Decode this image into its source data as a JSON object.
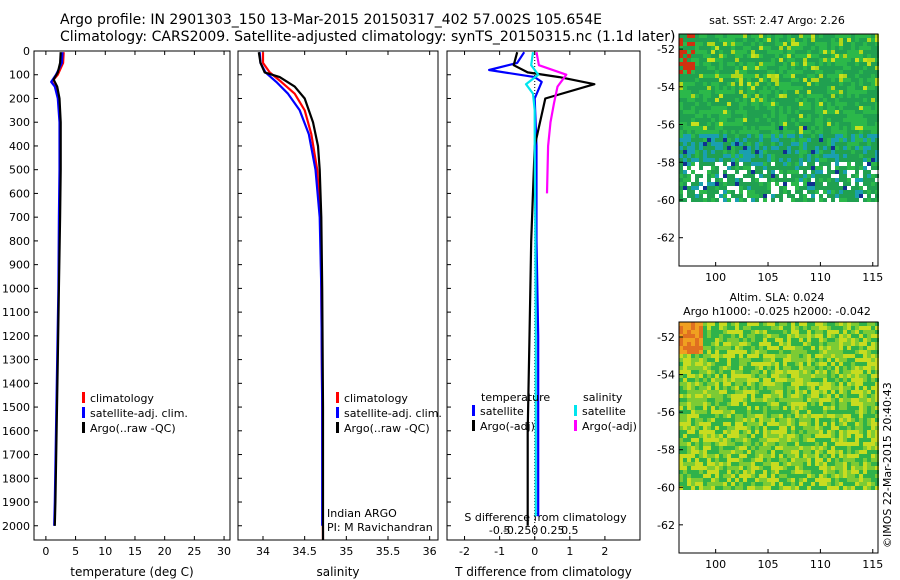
{
  "header": {
    "line1": "Argo profile: IN 2901303_150 13-Mar-2015 20150317_402 57.002S 105.654E",
    "line2": "Climatology: CARS2009. Satellite-adjusted climatology: synTS_20150315.nc (1.1d later)"
  },
  "side_stamp": "©IMOS 22-Mar-2015 20:40:43",
  "colors": {
    "climatology": "#ff0000",
    "satellite_adj": "#0000ff",
    "argo": "#000000",
    "salinity_satellite": "#00e5ee",
    "salinity_argo": "#ff00ff"
  },
  "chart_data": [
    {
      "id": "temperature",
      "type": "line",
      "xlabel": "temperature (deg C)",
      "ylabel": "",
      "xlim": [
        -2,
        31
      ],
      "ylim": [
        2060,
        0
      ],
      "xticks": [
        "0",
        "5",
        "10",
        "15",
        "20",
        "25",
        "30"
      ],
      "xtick_values": [
        0,
        5,
        10,
        15,
        20,
        25,
        30
      ],
      "yticks": [
        "0",
        "100",
        "200",
        "300",
        "400",
        "500",
        "600",
        "700",
        "800",
        "900",
        "1000",
        "1100",
        "1200",
        "1300",
        "1400",
        "1500",
        "1600",
        "1700",
        "1800",
        "1900",
        "2000"
      ],
      "ytick_values": [
        0,
        100,
        200,
        300,
        400,
        500,
        600,
        700,
        800,
        900,
        1000,
        1100,
        1200,
        1300,
        1400,
        1500,
        1600,
        1700,
        1800,
        1900,
        2000
      ],
      "legend": [
        "climatology",
        "satellite-adj. clim.",
        "Argo(..raw -QC)"
      ],
      "series": [
        {
          "name": "climatology",
          "color": "#ff0000",
          "depth": [
            5,
            50,
            100,
            130,
            150,
            200,
            300,
            400,
            500,
            600
          ],
          "values": [
            3.0,
            2.9,
            2.0,
            1.0,
            1.6,
            2.1,
            2.4,
            2.4,
            2.4,
            2.4
          ]
        },
        {
          "name": "satellite-adj. clim.",
          "color": "#0000ff",
          "depth": [
            5,
            50,
            100,
            130,
            150,
            200,
            300,
            500,
            700,
            1000,
            1300,
            1600,
            1900,
            2000
          ],
          "values": [
            2.8,
            2.7,
            1.7,
            0.9,
            1.5,
            2.0,
            2.3,
            2.3,
            2.2,
            2.1,
            1.9,
            1.7,
            1.5,
            1.4
          ]
        },
        {
          "name": "Argo(..raw -QC)",
          "color": "#000000",
          "depth": [
            5,
            50,
            90,
            120,
            150,
            200,
            300,
            500,
            700,
            1000,
            1300,
            1600,
            1900,
            2000
          ],
          "values": [
            2.5,
            2.4,
            2.0,
            1.3,
            1.9,
            2.3,
            2.5,
            2.5,
            2.4,
            2.2,
            2.0,
            1.8,
            1.6,
            1.5
          ]
        }
      ]
    },
    {
      "id": "salinity",
      "type": "line",
      "xlabel": "salinity",
      "xlim": [
        33.7,
        36.1
      ],
      "ylim": [
        2060,
        0
      ],
      "xticks": [
        "34",
        "34.5",
        "35",
        "35.5",
        "36"
      ],
      "xtick_values": [
        34,
        34.5,
        35,
        35.5,
        36
      ],
      "legend": [
        "climatology",
        "satellite-adj. clim.",
        "Argo(..raw -QC)"
      ],
      "annotation": [
        "Indian ARGO",
        "PI: M Ravichandran"
      ],
      "series": [
        {
          "name": "climatology",
          "color": "#ff0000",
          "depth": [
            5,
            50,
            90,
            130,
            180,
            250,
            350,
            500,
            700,
            1000,
            1500,
            2060
          ],
          "values": [
            34.0,
            34.0,
            34.08,
            34.22,
            34.38,
            34.5,
            34.58,
            34.65,
            34.69,
            34.7,
            34.71,
            34.72
          ]
        },
        {
          "name": "satellite-adj. clim.",
          "color": "#0000ff",
          "depth": [
            5,
            50,
            90,
            130,
            180,
            250,
            350,
            500,
            700,
            1000,
            1500,
            2000
          ],
          "values": [
            33.96,
            33.97,
            34.03,
            34.16,
            34.3,
            34.44,
            34.55,
            34.63,
            34.68,
            34.7,
            34.71,
            34.71
          ]
        },
        {
          "name": "Argo(..raw -QC)",
          "color": "#000000",
          "depth": [
            5,
            50,
            90,
            110,
            150,
            200,
            300,
            400,
            500,
            700,
            1000,
            1500,
            2060
          ],
          "values": [
            33.95,
            33.97,
            34.02,
            34.2,
            34.38,
            34.5,
            34.6,
            34.66,
            34.68,
            34.7,
            34.71,
            34.72,
            34.72
          ]
        }
      ]
    },
    {
      "id": "difference",
      "type": "line",
      "xlabel": "T difference from climatology",
      "xlabel_top": "S difference from climatology",
      "xlim": [
        -2.5,
        3.0
      ],
      "ylim": [
        2060,
        0
      ],
      "xticks": [
        "-2",
        "-1",
        "0",
        "1",
        "2"
      ],
      "xtick_values": [
        -2,
        -1,
        0,
        1,
        2
      ],
      "xticks_top": [
        "-0.5",
        "-0.25",
        "0",
        "0.25",
        "0.5"
      ],
      "legend_left_title": "temperature",
      "legend_right_title": "salinity",
      "legend": [
        "satellite",
        "Argo(-adj)",
        "satellite",
        "Argo(-adj)"
      ],
      "series": [
        {
          "name": "satellite",
          "group": "temperature",
          "color": "#0000ff",
          "depth": [
            5,
            50,
            80,
            110,
            130,
            200,
            400,
            800,
            1200,
            1600,
            1960
          ],
          "values": [
            -0.3,
            -0.5,
            -1.3,
            0.0,
            0.2,
            0.0,
            0.05,
            0.05,
            0.1,
            0.1,
            0.1
          ]
        },
        {
          "name": "Argo(-adj)",
          "group": "temperature",
          "color": "#000000",
          "depth": [
            5,
            60,
            90,
            110,
            140,
            200,
            400,
            800,
            1200,
            1600,
            2000
          ],
          "values": [
            -0.5,
            -0.6,
            -0.2,
            0.7,
            1.7,
            0.3,
            0.0,
            -0.1,
            -0.15,
            -0.2,
            -0.2
          ]
        },
        {
          "name": "satellite",
          "group": "salinity",
          "color": "#00e5ee",
          "depth": [
            5,
            60,
            100,
            140,
            180,
            250,
            400,
            800,
            1200,
            1600,
            1960
          ],
          "values": [
            -0.05,
            -0.1,
            0.1,
            -0.25,
            -0.05,
            0.0,
            0.0,
            0.02,
            0.03,
            0.03,
            0.03
          ]
        },
        {
          "name": "Argo(-adj)",
          "group": "salinity",
          "color": "#ff00ff",
          "depth": [
            5,
            60,
            100,
            150,
            220,
            300,
            400,
            600
          ],
          "values": [
            0.05,
            0.12,
            0.9,
            0.65,
            0.55,
            0.45,
            0.38,
            0.35
          ]
        }
      ]
    }
  ],
  "maps": [
    {
      "id": "sst",
      "title": "sat. SST: 2.47 Argo: 2.26",
      "xticks": [
        "100",
        "105",
        "110",
        "115"
      ],
      "xtick_values": [
        100,
        105,
        110,
        115
      ],
      "yticks": [
        "-52",
        "-54",
        "-56",
        "-58",
        "-60",
        "-62"
      ],
      "ytick_values": [
        -52,
        -54,
        -56,
        -58,
        -60,
        -62
      ],
      "xlim": [
        96.5,
        115.5
      ],
      "ylim": [
        -63.5,
        -51.2
      ],
      "data_bottom_lat": -60
    },
    {
      "id": "sla",
      "title": "Altim. SLA: 0.024",
      "subtitle": "Argo h1000: -0.025 h2000: -0.042",
      "xticks": [
        "100",
        "105",
        "110",
        "115"
      ],
      "xtick_values": [
        100,
        105,
        110,
        115
      ],
      "yticks": [
        "-52",
        "-54",
        "-56",
        "-58",
        "-60",
        "-62"
      ],
      "ytick_values": [
        -52,
        -54,
        -56,
        -58,
        -60,
        -62
      ],
      "xlim": [
        96.5,
        115.5
      ],
      "ylim": [
        -63.5,
        -51.2
      ],
      "data_bottom_lat": -60
    }
  ]
}
